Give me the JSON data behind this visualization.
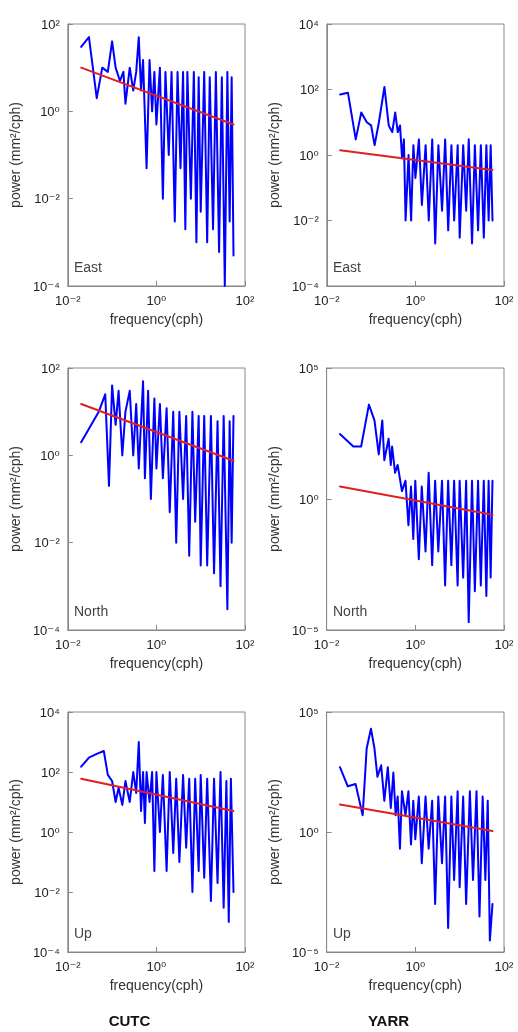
{
  "chart_data": [
    {
      "type": "line",
      "log": "xy",
      "xlim": [
        0.01,
        100
      ],
      "xticks": [
        {
          "value": 0.01,
          "label": "10⁻²"
        },
        {
          "value": 1,
          "label": "10⁰"
        },
        {
          "value": 100,
          "label": "10²"
        }
      ],
      "ylim": [
        0.0001,
        100
      ],
      "yticks": [
        {
          "value": 0.0001,
          "label": "10⁻⁴"
        },
        {
          "value": 0.01,
          "label": "10⁻²"
        },
        {
          "value": 1,
          "label": "10⁰"
        },
        {
          "value": 100,
          "label": "10²"
        }
      ],
      "xlabel": "frequency(cph)",
      "ylabel": "power (mm²/cph)",
      "annotations": [
        "East"
      ],
      "series": [
        {
          "color": "#0000ff",
          "x": [
            0.02,
            0.03,
            0.045,
            0.06,
            0.08,
            0.1,
            0.12,
            0.15,
            0.18,
            0.2,
            0.25,
            0.3,
            0.35,
            0.4,
            0.45,
            0.5,
            0.6,
            0.7,
            0.8,
            0.9,
            1,
            1.2,
            1.4,
            1.6,
            1.9,
            2.2,
            2.6,
            3,
            3.5,
            4,
            4.5,
            5,
            6,
            7,
            8,
            9,
            10,
            12,
            14,
            16,
            19,
            22,
            26,
            30,
            35,
            40,
            45,
            50,
            55
          ],
          "values": [
            30,
            50,
            2,
            10,
            8,
            40,
            10,
            5,
            8,
            1.5,
            10,
            3,
            8,
            50,
            3,
            15,
            0.05,
            15,
            1,
            8,
            0.5,
            10,
            0.01,
            8,
            0.1,
            8,
            0.003,
            8,
            0.05,
            8,
            0.002,
            8,
            0.01,
            8,
            0.001,
            6,
            0.005,
            8,
            0.001,
            6,
            0.002,
            8,
            0.0006,
            6,
            0.0001,
            8,
            0.003,
            6,
            0.0005
          ]
        },
        {
          "color": "#e02020",
          "x": [
            0.02,
            55
          ],
          "values": [
            10,
            0.5
          ]
        }
      ]
    },
    {
      "type": "line",
      "log": "xy",
      "xlim": [
        0.01,
        100
      ],
      "xticks": [
        {
          "value": 0.01,
          "label": "10⁻²"
        },
        {
          "value": 1,
          "label": "10⁰"
        },
        {
          "value": 100,
          "label": "10²"
        }
      ],
      "ylim": [
        0.0001,
        10000
      ],
      "yticks": [
        {
          "value": 0.0001,
          "label": "10⁻⁴"
        },
        {
          "value": 0.01,
          "label": "10⁻²"
        },
        {
          "value": 1,
          "label": "10⁰"
        },
        {
          "value": 100,
          "label": "10²"
        },
        {
          "value": 10000,
          "label": "10⁴"
        }
      ],
      "xlabel": "frequency(cph)",
      "ylabel": "power (mm²/cph)",
      "annotations": [
        "East"
      ],
      "series": [
        {
          "color": "#0000ff",
          "x": [
            0.02,
            0.03,
            0.045,
            0.06,
            0.08,
            0.1,
            0.12,
            0.15,
            0.2,
            0.25,
            0.3,
            0.35,
            0.4,
            0.45,
            0.5,
            0.55,
            0.6,
            0.7,
            0.8,
            0.9,
            1,
            1.2,
            1.4,
            1.7,
            2,
            2.4,
            2.8,
            3.3,
            4,
            4.7,
            5.5,
            6.5,
            7.5,
            9,
            10,
            12,
            14,
            16,
            19,
            22,
            26,
            30,
            35,
            40,
            45,
            50,
            55
          ],
          "values": [
            70,
            80,
            3,
            20,
            10,
            8,
            2,
            10,
            120,
            8,
            5,
            20,
            5,
            8,
            0.8,
            3,
            0.01,
            1,
            0.01,
            2,
            0.2,
            3,
            0.03,
            2,
            0.01,
            3,
            0.002,
            2,
            0.02,
            3,
            0.005,
            2,
            0.01,
            2,
            0.003,
            2,
            0.02,
            3,
            0.002,
            2,
            0.005,
            2,
            0.003,
            2,
            0.01,
            2,
            0.01
          ]
        },
        {
          "color": "#e02020",
          "x": [
            0.02,
            55
          ],
          "values": [
            1.4,
            0.35
          ]
        }
      ]
    },
    {
      "type": "line",
      "log": "xy",
      "xlim": [
        0.01,
        100
      ],
      "xticks": [
        {
          "value": 0.01,
          "label": "10⁻²"
        },
        {
          "value": 1,
          "label": "10⁰"
        },
        {
          "value": 100,
          "label": "10²"
        }
      ],
      "ylim": [
        0.0001,
        100
      ],
      "yticks": [
        {
          "value": 0.0001,
          "label": "10⁻⁴"
        },
        {
          "value": 0.01,
          "label": "10⁻²"
        },
        {
          "value": 1,
          "label": "10⁰"
        },
        {
          "value": 100,
          "label": "10²"
        }
      ],
      "xlabel": "frequency(cph)",
      "ylabel": "power (mm²/cph)",
      "annotations": [
        "North"
      ],
      "series": [
        {
          "color": "#0000ff",
          "x": [
            0.02,
            0.05,
            0.07,
            0.085,
            0.1,
            0.12,
            0.14,
            0.17,
            0.2,
            0.25,
            0.3,
            0.35,
            0.4,
            0.5,
            0.55,
            0.65,
            0.75,
            0.9,
            1,
            1.2,
            1.4,
            1.7,
            2,
            2.4,
            2.8,
            3.3,
            4,
            4.7,
            5.5,
            6.5,
            7.5,
            9,
            10,
            12,
            14,
            17,
            20,
            24,
            28,
            33,
            40,
            45,
            50,
            55
          ],
          "values": [
            2,
            10,
            25,
            0.2,
            40,
            5,
            30,
            1,
            10,
            30,
            1,
            15,
            0.5,
            50,
            0.3,
            30,
            0.1,
            20,
            0.5,
            15,
            0.3,
            12,
            0.05,
            10,
            0.01,
            10,
            0.1,
            8,
            0.005,
            10,
            0.03,
            8,
            0.003,
            8,
            0.003,
            8,
            0.002,
            6,
            0.001,
            8,
            0.0003,
            6,
            0.01,
            8
          ]
        },
        {
          "color": "#e02020",
          "x": [
            0.02,
            55
          ],
          "values": [
            15,
            0.75
          ]
        }
      ]
    },
    {
      "type": "line",
      "log": "xy",
      "xlim": [
        0.01,
        100
      ],
      "xticks": [
        {
          "value": 0.01,
          "label": "10⁻²"
        },
        {
          "value": 1,
          "label": "10⁰"
        },
        {
          "value": 100,
          "label": "10²"
        }
      ],
      "ylim": [
        1e-05,
        100000
      ],
      "yticks": [
        {
          "value": 1e-05,
          "label": "10⁻⁵"
        },
        {
          "value": 1,
          "label": "10⁰"
        },
        {
          "value": 100000,
          "label": "10⁵"
        }
      ],
      "xlabel": "frequency(cph)",
      "ylabel": "power (mm²/cph)",
      "annotations": [
        "North"
      ],
      "series": [
        {
          "color": "#0000ff",
          "x": [
            0.02,
            0.04,
            0.06,
            0.09,
            0.12,
            0.15,
            0.18,
            0.2,
            0.25,
            0.28,
            0.3,
            0.35,
            0.4,
            0.5,
            0.6,
            0.7,
            0.8,
            0.9,
            1,
            1.2,
            1.4,
            1.7,
            2,
            2.4,
            2.8,
            3.3,
            4,
            4.7,
            5.5,
            6.5,
            7.5,
            9,
            10,
            12,
            14,
            16,
            19,
            22,
            26,
            30,
            35,
            40,
            45,
            50,
            55
          ],
          "values": [
            300,
            100,
            100,
            4000,
            1000,
            50,
            1000,
            30,
            200,
            20,
            100,
            10,
            20,
            2,
            5,
            0.1,
            3,
            0.03,
            5,
            0.005,
            3,
            0.01,
            10,
            0.003,
            5,
            0.01,
            5,
            0.0005,
            5,
            0.003,
            5,
            0.0005,
            5,
            0.001,
            5,
            2e-05,
            5,
            0.0003,
            5,
            0.0005,
            5,
            0.0002,
            5,
            0.001,
            5
          ]
        },
        {
          "color": "#e02020",
          "x": [
            0.02,
            55
          ],
          "values": [
            3,
            0.25
          ]
        }
      ]
    },
    {
      "type": "line",
      "log": "xy",
      "xlim": [
        0.01,
        100
      ],
      "xticks": [
        {
          "value": 0.01,
          "label": "10⁻²"
        },
        {
          "value": 1,
          "label": "10⁰"
        },
        {
          "value": 100,
          "label": "10²"
        }
      ],
      "ylim": [
        0.0001,
        10000
      ],
      "yticks": [
        {
          "value": 0.0001,
          "label": "10⁻⁴"
        },
        {
          "value": 0.01,
          "label": "10⁻²"
        },
        {
          "value": 1,
          "label": "10⁰"
        },
        {
          "value": 100,
          "label": "10²"
        },
        {
          "value": 10000,
          "label": "10⁴"
        }
      ],
      "xlabel": "frequency(cph)",
      "ylabel": "power (mm²/cph)",
      "annotations": [
        "Up",
        "CUTC"
      ],
      "series": [
        {
          "color": "#0000ff",
          "x": [
            0.02,
            0.03,
            0.045,
            0.065,
            0.08,
            0.1,
            0.12,
            0.14,
            0.17,
            0.2,
            0.25,
            0.3,
            0.35,
            0.4,
            0.45,
            0.5,
            0.55,
            0.6,
            0.7,
            0.8,
            0.9,
            1,
            1.2,
            1.4,
            1.7,
            2,
            2.4,
            2.8,
            3.3,
            4,
            4.7,
            5.5,
            6.5,
            7.5,
            9,
            10,
            12,
            14,
            17,
            20,
            24,
            28,
            33,
            38,
            43,
            48,
            55
          ],
          "values": [
            150,
            300,
            400,
            500,
            80,
            50,
            10,
            30,
            8,
            50,
            10,
            100,
            20,
            1000,
            5,
            100,
            2,
            100,
            10,
            100,
            0.05,
            100,
            1,
            80,
            0.05,
            100,
            0.2,
            60,
            0.1,
            80,
            0.3,
            60,
            0.01,
            60,
            0.05,
            80,
            0.03,
            60,
            0.005,
            60,
            0.02,
            100,
            0.003,
            50,
            0.001,
            60,
            0.01
          ]
        },
        {
          "color": "#e02020",
          "x": [
            0.02,
            55
          ],
          "values": [
            60,
            5
          ]
        }
      ]
    },
    {
      "type": "line",
      "log": "xy",
      "xlim": [
        0.01,
        100
      ],
      "xticks": [
        {
          "value": 0.01,
          "label": "10⁻²"
        },
        {
          "value": 1,
          "label": "10⁰"
        },
        {
          "value": 100,
          "label": "10²"
        }
      ],
      "ylim": [
        1e-05,
        100000
      ],
      "yticks": [
        {
          "value": 1e-05,
          "label": "10⁻⁵"
        },
        {
          "value": 1,
          "label": "10⁰"
        },
        {
          "value": 100000,
          "label": "10⁵"
        }
      ],
      "xlabel": "frequency(cph)",
      "ylabel": "power (mm²/cph)",
      "annotations": [
        "Up",
        "YARR"
      ],
      "series": [
        {
          "color": "#0000ff",
          "x": [
            0.02,
            0.03,
            0.045,
            0.065,
            0.08,
            0.1,
            0.12,
            0.14,
            0.17,
            0.2,
            0.24,
            0.28,
            0.32,
            0.36,
            0.4,
            0.45,
            0.5,
            0.6,
            0.7,
            0.8,
            0.9,
            1,
            1.2,
            1.4,
            1.7,
            2,
            2.4,
            2.8,
            3.3,
            4,
            4.7,
            5.5,
            6.5,
            7.5,
            9,
            10,
            12,
            14,
            17,
            20,
            24,
            28,
            33,
            38,
            43,
            48,
            55
          ],
          "values": [
            500,
            80,
            100,
            5,
            3000,
            20000,
            3000,
            200,
            600,
            20,
            500,
            10,
            300,
            5,
            30,
            0.2,
            50,
            5,
            50,
            0.3,
            20,
            0.5,
            30,
            0.05,
            30,
            0.2,
            20,
            0.001,
            30,
            0.05,
            30,
            0.0001,
            30,
            0.01,
            50,
            0.005,
            30,
            0.001,
            50,
            0.01,
            50,
            0.0003,
            30,
            0.01,
            20,
            3e-05,
            0.001
          ]
        },
        {
          "color": "#e02020",
          "x": [
            0.02,
            55
          ],
          "values": [
            14,
            1.1
          ]
        }
      ]
    }
  ]
}
